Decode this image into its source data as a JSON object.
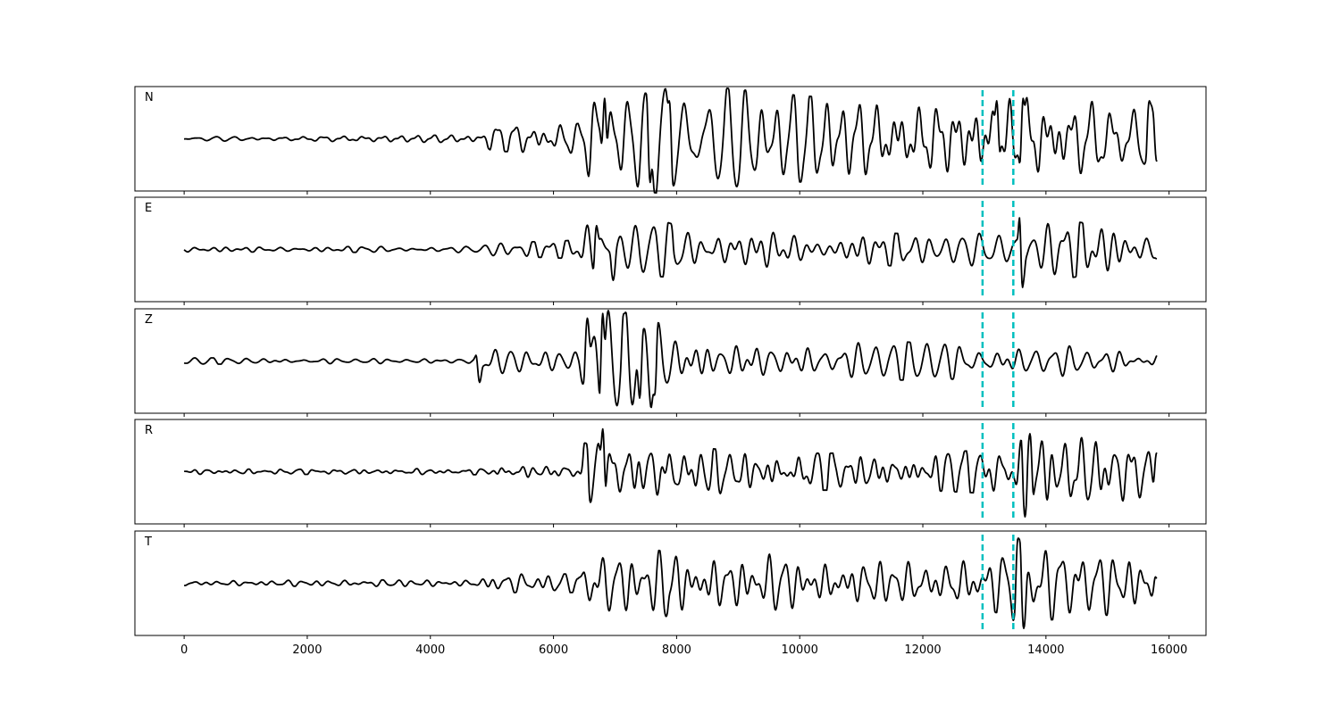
{
  "chart_data": {
    "type": "line",
    "x_range": [
      -800,
      16600
    ],
    "x_ticks": [
      0,
      2000,
      4000,
      6000,
      8000,
      10000,
      12000,
      14000,
      16000
    ],
    "x_tick_labels": [
      "0",
      "2000",
      "4000",
      "6000",
      "8000",
      "10000",
      "12000",
      "14000",
      "16000"
    ],
    "signal_x_range": [
      0,
      15800
    ],
    "y_range": [
      -1.1,
      1.1
    ],
    "grid": false,
    "series_color": "#000000",
    "marker_color": "#00bfbf",
    "markers": [
      12970,
      13470
    ],
    "channels": [
      {
        "name": "N",
        "envelope": [
          [
            0,
            0.05
          ],
          [
            4800,
            0.06
          ],
          [
            5000,
            0.2
          ],
          [
            6500,
            0.25
          ],
          [
            6600,
            0.8
          ],
          [
            8000,
            0.9
          ],
          [
            10000,
            0.7
          ],
          [
            12000,
            0.55
          ],
          [
            13000,
            0.7
          ],
          [
            13600,
            0.8
          ],
          [
            15800,
            0.85
          ]
        ],
        "peaks": [
          [
            6830,
            0.85
          ],
          [
            7570,
            -0.92
          ],
          [
            7880,
            0.8
          ],
          [
            13200,
            0.8
          ],
          [
            13630,
            0.85
          ],
          [
            15680,
            0.8
          ],
          [
            15800,
            -0.48
          ]
        ]
      },
      {
        "name": "E",
        "envelope": [
          [
            0,
            0.04
          ],
          [
            4800,
            0.05
          ],
          [
            5000,
            0.1
          ],
          [
            6400,
            0.15
          ],
          [
            6500,
            0.4
          ],
          [
            8000,
            0.45
          ],
          [
            10000,
            0.3
          ],
          [
            12000,
            0.25
          ],
          [
            13000,
            0.3
          ],
          [
            13500,
            0.35
          ],
          [
            13600,
            0.85
          ],
          [
            14000,
            0.5
          ],
          [
            15800,
            0.3
          ]
        ],
        "peaks": [
          [
            6700,
            0.5
          ],
          [
            6970,
            -0.65
          ],
          [
            7900,
            0.55
          ],
          [
            13590,
            1.0
          ],
          [
            13620,
            -0.8
          ],
          [
            15800,
            -0.2
          ]
        ]
      },
      {
        "name": "Z",
        "envelope": [
          [
            0,
            0.05
          ],
          [
            4700,
            0.05
          ],
          [
            4800,
            0.25
          ],
          [
            6400,
            0.2
          ],
          [
            6500,
            0.8
          ],
          [
            7400,
            0.9
          ],
          [
            8000,
            0.6
          ],
          [
            10000,
            0.35
          ],
          [
            12000,
            0.3
          ],
          [
            15800,
            0.25
          ]
        ],
        "peaks": [
          [
            4800,
            -0.45
          ],
          [
            6550,
            0.9
          ],
          [
            6800,
            1.0
          ],
          [
            7150,
            1.0
          ],
          [
            7400,
            -0.78
          ],
          [
            7640,
            -0.72
          ]
        ]
      },
      {
        "name": "R",
        "envelope": [
          [
            0,
            0.04
          ],
          [
            5000,
            0.05
          ],
          [
            5100,
            0.12
          ],
          [
            6400,
            0.12
          ],
          [
            6500,
            0.55
          ],
          [
            8000,
            0.4
          ],
          [
            10000,
            0.3
          ],
          [
            12000,
            0.3
          ],
          [
            13000,
            0.35
          ],
          [
            13500,
            0.4
          ],
          [
            13600,
            0.85
          ],
          [
            14000,
            0.6
          ],
          [
            15800,
            0.45
          ]
        ],
        "peaks": [
          [
            6800,
            0.9
          ],
          [
            6530,
            0.6
          ],
          [
            13660,
            -0.95
          ],
          [
            13740,
            0.8
          ],
          [
            15800,
            0.4
          ]
        ]
      },
      {
        "name": "T",
        "envelope": [
          [
            0,
            0.04
          ],
          [
            4700,
            0.06
          ],
          [
            5000,
            0.15
          ],
          [
            6400,
            0.15
          ],
          [
            6500,
            0.45
          ],
          [
            8000,
            0.55
          ],
          [
            10000,
            0.45
          ],
          [
            12000,
            0.35
          ],
          [
            13000,
            0.45
          ],
          [
            13400,
            0.5
          ],
          [
            13550,
            0.85
          ],
          [
            14000,
            0.6
          ],
          [
            15800,
            0.45
          ]
        ],
        "peaks": [
          [
            7830,
            -0.7
          ],
          [
            13550,
            0.95
          ],
          [
            13640,
            -0.95
          ],
          [
            15800,
            0.1
          ]
        ]
      }
    ]
  }
}
